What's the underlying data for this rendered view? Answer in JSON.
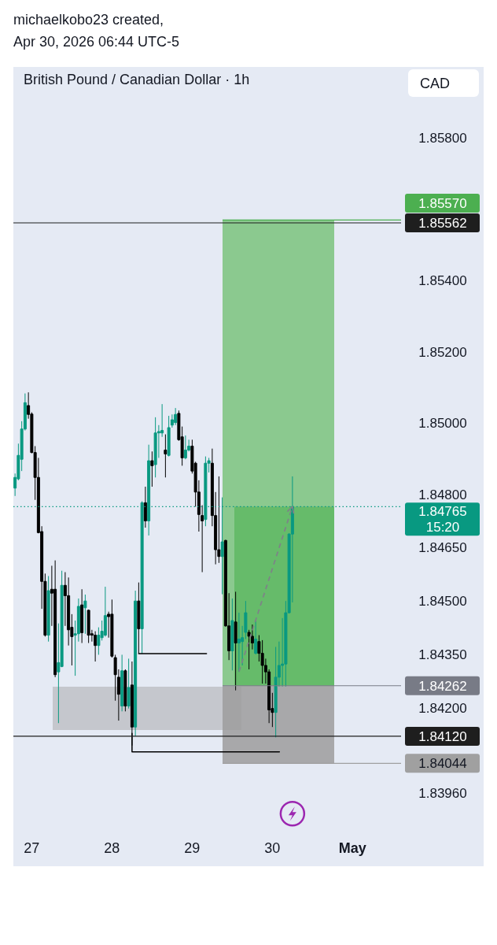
{
  "chart_data": {
    "type": "candlestick",
    "title": "British Pound / Canadian Dollar · 1h",
    "ylabel": "CAD",
    "annotations": [
      "michaelkobo23 created,",
      "Apr 30, 2026 06:44 UTC-5"
    ],
    "xlim": [
      "2026-04-26T18:30",
      "2026-05-01T14:30"
    ],
    "ylim": [
      1.8396,
      1.86
    ],
    "xticks": [
      {
        "value": "2026-04-27",
        "label": "27"
      },
      {
        "value": "2026-04-28",
        "label": "28"
      },
      {
        "value": "2026-04-29",
        "label": "29"
      },
      {
        "value": "2026-04-30",
        "label": "30"
      },
      {
        "value": "2026-05-01",
        "label": "May"
      }
    ],
    "yticks": [
      {
        "value": 1.858,
        "label": "1.85800"
      },
      {
        "value": 1.854,
        "label": "1.85400"
      },
      {
        "value": 1.852,
        "label": "1.85200"
      },
      {
        "value": 1.85,
        "label": "1.85000"
      },
      {
        "value": 1.848,
        "label": "1.84800"
      },
      {
        "value": 1.8465,
        "label": "1.84650"
      },
      {
        "value": 1.845,
        "label": "1.84500"
      },
      {
        "value": 1.8435,
        "label": "1.84350"
      },
      {
        "value": 1.842,
        "label": "1.84200"
      },
      {
        "value": 1.8396,
        "label": "1.83960"
      }
    ],
    "ref_lines": [
      {
        "axis": "y",
        "value": 1.85562,
        "label": "1.85562",
        "color": "#1e1e1e",
        "line_style": "solid"
      },
      {
        "axis": "y",
        "value": 1.8412,
        "label": "1.84120",
        "color": "#1e1e1e",
        "line_style": "solid"
      },
      {
        "axis": "y",
        "value": 1.84765,
        "label": "1.84765\n15:20",
        "color": "#089981",
        "line_style": "dotted"
      },
      {
        "axis": "y",
        "value": 1.8557,
        "label": "1.85570",
        "color": "#4caf50"
      },
      {
        "axis": "y",
        "value": 1.84262,
        "label": "1.84262",
        "color": "#787b86"
      },
      {
        "axis": "y",
        "value": 1.84044,
        "label": "1.84044",
        "color": "#a0a0a0"
      }
    ],
    "series": [
      {
        "x": [
          "2026-04-26T19:00",
          "2026-04-26T20:00",
          "2026-04-26T21:00",
          "2026-04-26T22:00",
          "2026-04-26T23:00",
          "2026-04-27T00:00",
          "2026-04-27T01:00",
          "2026-04-27T02:00",
          "2026-04-27T03:00",
          "2026-04-27T04:00",
          "2026-04-27T05:00",
          "2026-04-27T06:00",
          "2026-04-27T07:00",
          "2026-04-27T08:00",
          "2026-04-27T09:00",
          "2026-04-27T10:00",
          "2026-04-27T11:00",
          "2026-04-27T12:00",
          "2026-04-27T13:00",
          "2026-04-27T14:00",
          "2026-04-27T15:00",
          "2026-04-27T16:00",
          "2026-04-27T17:00",
          "2026-04-27T18:00",
          "2026-04-27T19:00",
          "2026-04-27T20:00",
          "2026-04-27T21:00",
          "2026-04-27T22:00",
          "2026-04-27T23:00",
          "2026-04-28T00:00",
          "2026-04-28T01:00",
          "2026-04-28T02:00",
          "2026-04-28T03:00",
          "2026-04-28T04:00",
          "2026-04-28T05:00",
          "2026-04-28T06:00",
          "2026-04-28T07:00",
          "2026-04-28T08:00",
          "2026-04-28T09:00",
          "2026-04-28T10:00",
          "2026-04-28T11:00",
          "2026-04-28T12:00",
          "2026-04-28T13:00",
          "2026-04-28T14:00",
          "2026-04-28T15:00",
          "2026-04-28T16:00",
          "2026-04-28T17:00",
          "2026-04-28T18:00",
          "2026-04-28T19:00",
          "2026-04-28T20:00",
          "2026-04-28T21:00",
          "2026-04-28T22:00",
          "2026-04-28T23:00",
          "2026-04-29T00:00",
          "2026-04-29T01:00",
          "2026-04-29T02:00",
          "2026-04-29T03:00",
          "2026-04-29T04:00",
          "2026-04-29T05:00",
          "2026-04-29T06:00",
          "2026-04-29T07:00",
          "2026-04-29T08:00",
          "2026-04-29T09:00",
          "2026-04-29T10:00",
          "2026-04-29T11:00",
          "2026-04-29T12:00",
          "2026-04-29T13:00",
          "2026-04-29T14:00",
          "2026-04-29T15:00",
          "2026-04-29T16:00",
          "2026-04-29T17:00",
          "2026-04-29T18:00",
          "2026-04-29T19:00",
          "2026-04-29T20:00",
          "2026-04-29T21:00",
          "2026-04-29T22:00",
          "2026-04-29T23:00",
          "2026-04-30T00:00",
          "2026-04-30T01:00",
          "2026-04-30T02:00",
          "2026-04-30T03:00",
          "2026-04-30T04:00",
          "2026-04-30T05:00",
          "2026-04-30T06:00"
        ],
        "ohlc": [
          [
            1.84817,
            1.84858,
            1.84795,
            1.84847
          ],
          [
            1.84843,
            1.84942,
            1.84839,
            1.84909
          ],
          [
            1.84898,
            1.85005,
            1.84865,
            1.84983
          ],
          [
            1.84983,
            1.85083,
            1.84979,
            1.85057
          ],
          [
            1.85049,
            1.85086,
            1.85012,
            1.85024
          ],
          [
            1.85025,
            1.8503,
            1.84915,
            1.84917
          ],
          [
            1.84917,
            1.84935,
            1.84784,
            1.84847
          ],
          [
            1.84847,
            1.84902,
            1.8469,
            1.84692
          ],
          [
            1.84695,
            1.8471,
            1.84478,
            1.84555
          ],
          [
            1.84555,
            1.84577,
            1.844,
            1.84404
          ],
          [
            1.84404,
            1.8457,
            1.84386,
            1.84529
          ],
          [
            1.84533,
            1.84599,
            1.8443,
            1.84522
          ],
          [
            1.84533,
            1.84614,
            1.84286,
            1.84293
          ],
          [
            1.84301,
            1.84437,
            1.84157,
            1.84327
          ],
          [
            1.84316,
            1.84585,
            1.84314,
            1.84544
          ],
          [
            1.84544,
            1.84581,
            1.8443,
            1.84515
          ],
          [
            1.84515,
            1.84566,
            1.84375,
            1.84419
          ],
          [
            1.84426,
            1.84463,
            1.84319,
            1.844
          ],
          [
            1.84404,
            1.84445,
            1.8429,
            1.84408
          ],
          [
            1.84408,
            1.84507,
            1.84386,
            1.84485
          ],
          [
            1.84489,
            1.84533,
            1.84382,
            1.84411
          ],
          [
            1.84481,
            1.84518,
            1.84408,
            1.845
          ],
          [
            1.84474,
            1.84476,
            1.84382,
            1.84404
          ],
          [
            1.84408,
            1.84419,
            1.84386,
            1.84404
          ],
          [
            1.84404,
            1.84415,
            1.8433,
            1.84375
          ],
          [
            1.84375,
            1.84426,
            1.84349,
            1.84404
          ],
          [
            1.84397,
            1.84445,
            1.84389,
            1.84415
          ],
          [
            1.84404,
            1.8454,
            1.844,
            1.84459
          ],
          [
            1.84463,
            1.8447,
            1.84397,
            1.84456
          ],
          [
            1.84463,
            1.84504,
            1.84341,
            1.84345
          ],
          [
            1.84341,
            1.84349,
            1.8422,
            1.84293
          ],
          [
            1.84286,
            1.84308,
            1.84164,
            1.84238
          ],
          [
            1.84205,
            1.84349,
            1.8419,
            1.84304
          ],
          [
            1.84304,
            1.84308,
            1.8419,
            1.84205
          ],
          [
            1.84205,
            1.84338,
            1.84198,
            1.84257
          ],
          [
            1.84264,
            1.8433,
            1.84094,
            1.84146
          ],
          [
            1.84146,
            1.84529,
            1.8412,
            1.845
          ],
          [
            1.845,
            1.84552,
            1.84352,
            1.84422
          ],
          [
            1.84422,
            1.8478,
            1.84352,
            1.84776
          ],
          [
            1.84776,
            1.84821,
            1.84706,
            1.84725
          ],
          [
            1.84725,
            1.84939,
            1.84684,
            1.84894
          ],
          [
            1.84894,
            1.8492,
            1.84821,
            1.8488
          ],
          [
            1.84883,
            1.85016,
            1.84847,
            1.84972
          ],
          [
            1.84972,
            1.84994,
            1.84902,
            1.84976
          ],
          [
            1.84972,
            1.85053,
            1.84961,
            1.84979
          ],
          [
            1.84924,
            1.84968,
            1.84847,
            1.84913
          ],
          [
            1.84909,
            1.8502,
            1.84906,
            1.84987
          ],
          [
            1.84994,
            1.85024,
            1.84987,
            1.85009
          ],
          [
            1.85001,
            1.85042,
            1.84994,
            1.85024
          ],
          [
            1.85027,
            1.85035,
            1.8495,
            1.84953
          ],
          [
            1.84961,
            1.8499,
            1.8488,
            1.84902
          ],
          [
            1.84902,
            1.84965,
            1.84898,
            1.84924
          ],
          [
            1.84924,
            1.84953,
            1.8492,
            1.84935
          ],
          [
            1.84935,
            1.84953,
            1.84858,
            1.84865
          ],
          [
            1.84887,
            1.84891,
            1.84765,
            1.84806
          ],
          [
            1.84806,
            1.84839,
            1.84695,
            1.84743
          ],
          [
            1.8474,
            1.84769,
            1.84581,
            1.84725
          ],
          [
            1.84729,
            1.84906,
            1.8471,
            1.84887
          ],
          [
            1.84887,
            1.84902,
            1.84861,
            1.84894
          ],
          [
            1.84887,
            1.84928,
            1.8471,
            1.8474
          ],
          [
            1.8474,
            1.84806,
            1.84603,
            1.84644
          ],
          [
            1.84644,
            1.8485,
            1.84607,
            1.84625
          ],
          [
            1.84625,
            1.84791,
            1.84519,
            1.84666
          ],
          [
            1.8467,
            1.84672,
            1.84428,
            1.8443
          ],
          [
            1.8443,
            1.84522,
            1.84334,
            1.8436
          ],
          [
            1.8436,
            1.84507,
            1.84305,
            1.84445
          ],
          [
            1.84441,
            1.84526,
            1.84249,
            1.84382
          ],
          [
            1.84382,
            1.84467,
            1.84301,
            1.84393
          ],
          [
            1.84386,
            1.8443,
            1.84319,
            1.84397
          ],
          [
            1.84412,
            1.845,
            1.84393,
            1.84467
          ],
          [
            1.84412,
            1.84419,
            1.84308,
            1.84401
          ],
          [
            1.84401,
            1.84434,
            1.84364,
            1.84382
          ],
          [
            1.84353,
            1.84445,
            1.8435,
            1.84393
          ],
          [
            1.84386,
            1.84404,
            1.8433,
            1.84353
          ],
          [
            1.84353,
            1.8439,
            1.84268,
            1.84319
          ],
          [
            1.84319,
            1.84338,
            1.84268,
            1.84301
          ],
          [
            1.84301,
            1.84308,
            1.84157,
            1.84194
          ],
          [
            1.84198,
            1.84242,
            1.84146,
            1.84187
          ],
          [
            1.84187,
            1.84371,
            1.84117,
            1.84286
          ],
          [
            1.84286,
            1.84386,
            1.8426,
            1.84319
          ],
          [
            1.84319,
            1.84452,
            1.8426,
            1.84323
          ],
          [
            1.84323,
            1.845,
            1.8426,
            1.84467
          ],
          [
            1.84467,
            1.8469,
            1.84465,
            1.84688
          ],
          [
            1.84688,
            1.8485,
            1.84496,
            1.84765
          ]
        ],
        "colors": [
          "#089981",
          "#089981",
          "#089981",
          "#089981",
          "#000000",
          "#000000",
          "#000000",
          "#000000",
          "#000000",
          "#000000",
          "#089981",
          "#000000",
          "#000000",
          "#089981",
          "#089981",
          "#000000",
          "#000000",
          "#000000",
          "#089981",
          "#089981",
          "#000000",
          "#089981",
          "#000000",
          "#000000",
          "#000000",
          "#089981",
          "#089981",
          "#089981",
          "#000000",
          "#000000",
          "#000000",
          "#000000",
          "#089981",
          "#000000",
          "#089981",
          "#000000",
          "#089981",
          "#000000",
          "#089981",
          "#000000",
          "#089981",
          "#000000",
          "#089981",
          "#089981",
          "#089981",
          "#000000",
          "#089981",
          "#089981",
          "#089981",
          "#000000",
          "#000000",
          "#089981",
          "#089981",
          "#000000",
          "#000000",
          "#000000",
          "#000000",
          "#089981",
          "#089981",
          "#000000",
          "#000000",
          "#000000",
          "#089981",
          "#000000",
          "#000000",
          "#089981",
          "#000000",
          "#089981",
          "#089981",
          "#089981",
          "#000000",
          "#000000",
          "#089981",
          "#000000",
          "#000000",
          "#000000",
          "#000000",
          "#000000",
          "#089981",
          "#089981",
          "#089981",
          "#089981",
          "#089981",
          "#089981"
        ]
      },
      {
        "type": "line",
        "x": [
          "2026-04-28T08:00",
          "2026-04-29T04:18"
        ],
        "values": [
          1.84352,
          1.84352
        ],
        "color": "#000000"
      },
      {
        "type": "line",
        "x": [
          "2026-04-28T06:00",
          "2026-04-28T06:00",
          "2026-04-30T02:06"
        ],
        "values": [
          1.84128,
          1.84076,
          1.84076
        ],
        "color": "#000000"
      }
    ]
  }
}
